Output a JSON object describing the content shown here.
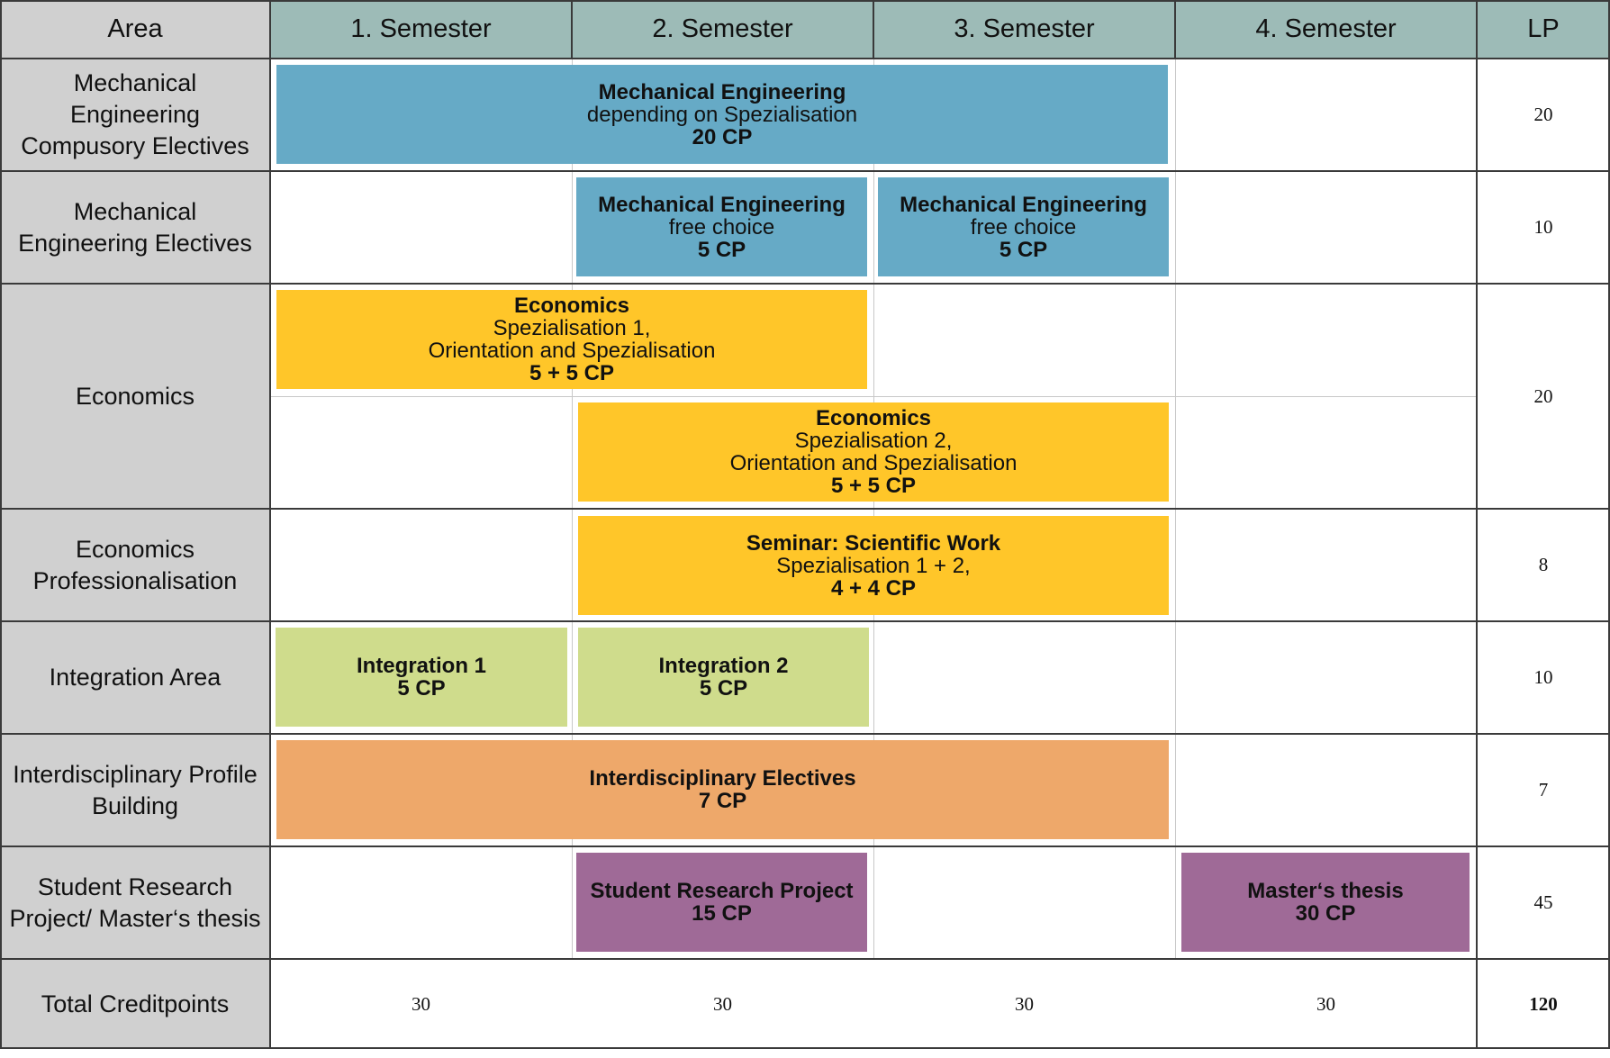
{
  "header": {
    "area": "Area",
    "semesters": [
      "1. Semester",
      "2. Semester",
      "3. Semester",
      "4. Semester"
    ],
    "lp": "LP"
  },
  "rows": [
    {
      "label": "Mechanical Engineering Compusory Electives",
      "lp": "20"
    },
    {
      "label": "Mechanical Engineering Electives",
      "lp": "10"
    },
    {
      "label": "Economics",
      "lp": "20"
    },
    {
      "label": "Economics Professionalisation",
      "lp": "8"
    },
    {
      "label": "Integration Area",
      "lp": "10"
    },
    {
      "label": "Interdisciplinary Profile Building",
      "lp": "7"
    },
    {
      "label": "Student Research Project/ Master‘s thesis",
      "lp": "45"
    }
  ],
  "total": {
    "label": "Total Creditpoints",
    "values": [
      "30",
      "30",
      "30",
      "30"
    ],
    "sum": "120"
  },
  "modules": {
    "me_compulsory": {
      "title": "Mechanical Engineering",
      "desc": "depending on Spezialisation",
      "cp": "20 CP"
    },
    "me_free_1": {
      "title": "Mechanical Engineering",
      "desc": "free choice",
      "cp": "5 CP"
    },
    "me_free_2": {
      "title": "Mechanical Engineering",
      "desc": "free choice",
      "cp": "5 CP"
    },
    "econ_1": {
      "title": "Economics",
      "desc1": "Spezialisation 1,",
      "desc2": "Orientation and Spezialisation",
      "cp": "5 + 5 CP"
    },
    "econ_2": {
      "title": "Economics",
      "desc1": "Spezialisation 2,",
      "desc2": "Orientation and Spezialisation",
      "cp": "5 + 5 CP"
    },
    "seminar": {
      "title": "Seminar: Scientific Work",
      "desc": "Spezialisation 1 + 2,",
      "cp": "4 + 4 CP"
    },
    "integration_1": {
      "title": "Integration 1",
      "cp": "5 CP"
    },
    "integration_2": {
      "title": "Integration 2",
      "cp": "5 CP"
    },
    "interdisciplinary": {
      "title": "Interdisciplinary Electives",
      "cp": "7 CP"
    },
    "research_project": {
      "title": "Student Research Project",
      "cp": "15 CP"
    },
    "masters_thesis": {
      "title": "Master‘s thesis",
      "cp": "30 CP"
    }
  },
  "colors": {
    "header": "#9dbbb7",
    "area": "#d0d0d0",
    "mechanical": "#66aac6",
    "economics": "#ffc629",
    "integration": "#cfdc8c",
    "interdisciplinary": "#eea86a",
    "thesis": "#9f6a97"
  }
}
